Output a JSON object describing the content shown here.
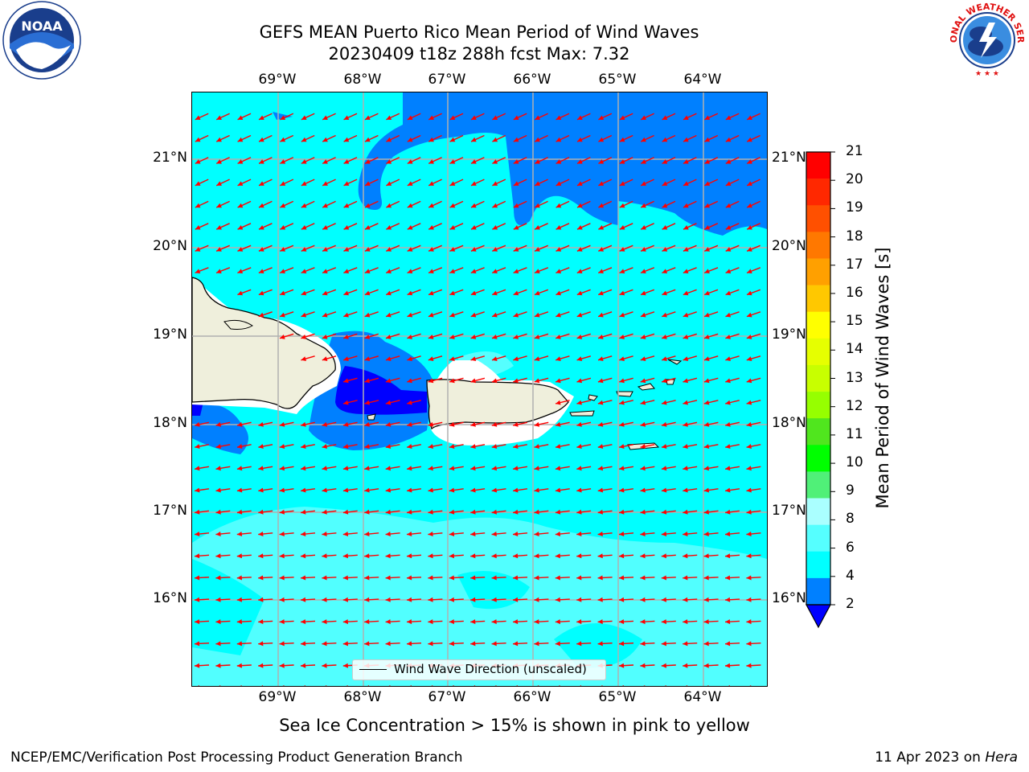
{
  "title": {
    "line1": "GEFS MEAN Puerto Rico Mean Period of Wind Waves",
    "line2": "20230409 t18z 288h fcst   Max: 7.32"
  },
  "axes": {
    "lon_labels": [
      "69°W",
      "68°W",
      "67°W",
      "66°W",
      "65°W",
      "64°W"
    ],
    "lat_labels": [
      "21°N",
      "20°N",
      "19°N",
      "18°N",
      "17°N",
      "16°N"
    ]
  },
  "legend": {
    "label": "Wind Wave Direction (unscaled)"
  },
  "colorbar": {
    "title": "Mean Period of Wind Waves [s]",
    "ticks": [
      "21",
      "20",
      "19",
      "18",
      "17",
      "16",
      "15",
      "14",
      "13",
      "12",
      "11",
      "10",
      "9",
      "8",
      "6",
      "4",
      "2"
    ],
    "colors": [
      "#ff0000",
      "#ff2800",
      "#ff5000",
      "#ff7800",
      "#ffa000",
      "#ffc800",
      "#ffff00",
      "#e6ff00",
      "#c8ff00",
      "#96ff00",
      "#50e61e",
      "#00ff00",
      "#50f078",
      "#aaffff",
      "#55ffff",
      "#00ffff",
      "#0080ff"
    ],
    "extend_color": "#0000ff"
  },
  "notes": {
    "ice": "Sea Ice Concentration > 15% is shown in pink to yellow",
    "footer_left": "NCEP/EMC/Verification Post Processing Product Generation Branch",
    "footer_right_date": "11 Apr 2023 on ",
    "footer_right_host": "Hera"
  },
  "logos": {
    "left": "noaa-logo",
    "right": "nws-logo",
    "noaa_text": "NOAA",
    "nws_text": "NATIONAL WEATHER SERVICE"
  },
  "map_colors": {
    "land": "#efefdc",
    "sea_4_6": "#00ffff",
    "sea_6_8": "#55ffff",
    "sea_2_4": "#0080ff",
    "sea_lt2": "#0000ff",
    "arrow": "#ff0000",
    "grid": "#b0b0b0"
  }
}
